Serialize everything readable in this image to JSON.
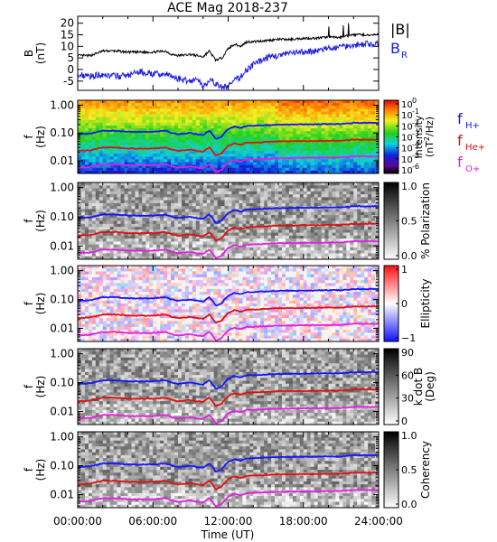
{
  "title": "ACE Mag 2018-237",
  "colors": {
    "H": "#1414ff",
    "He": "#e01010",
    "O": "#e020e0",
    "Btot": "#000000",
    "BR": "#1a1ae6"
  },
  "chart_data": [
    {
      "type": "line",
      "panel": "magnetic-field",
      "ylabel": [
        "B",
        "(nT)"
      ],
      "y_ticks": [
        "20",
        "15",
        "10",
        "5",
        "0",
        "-5"
      ],
      "ylim": [
        -9,
        23
      ],
      "x_hours": [
        0,
        1,
        2,
        3,
        4,
        5,
        6,
        7,
        7.5,
        8,
        9,
        9.5,
        10,
        10.5,
        11,
        11.5,
        12,
        12.5,
        13,
        13.5,
        14,
        15,
        16,
        17,
        18,
        19,
        20,
        21,
        22,
        23,
        24
      ],
      "series": [
        {
          "name": "|B|",
          "values": [
            6,
            6,
            8,
            8,
            7.5,
            7.5,
            7.5,
            8,
            6.5,
            6,
            6.5,
            6,
            5.5,
            8,
            4,
            5,
            9,
            11,
            10,
            12,
            12,
            12.5,
            13,
            13,
            13.5,
            13.5,
            14,
            14,
            15,
            15,
            15
          ]
        },
        {
          "name": "B_R",
          "values": [
            -2,
            -3,
            -2,
            -3,
            -2.5,
            -1,
            -2,
            -2,
            -3,
            -4,
            -5,
            -4,
            -7,
            -5,
            -6,
            -8,
            -7,
            -5,
            -3,
            0,
            2,
            5,
            6,
            7,
            7.5,
            8,
            9,
            10,
            10.5,
            11,
            11
          ]
        }
      ],
      "legend": [
        "|B|",
        "B",
        "R"
      ]
    },
    {
      "type": "heatmap",
      "panel": "intensity",
      "ylabel": [
        "f",
        "(Hz)"
      ],
      "y_ticks": [
        "1.00",
        "0.10",
        "0.01"
      ],
      "colorbar_label": "Intensity (nT²/Hz)",
      "colorbar_label_parts": [
        "Intensity",
        "(nT",
        "2",
        "/Hz)"
      ],
      "colorbar_ticks": [
        "10",
        "10",
        "10",
        "10",
        "10",
        "10",
        "10"
      ],
      "colorbar_exponents": [
        "0",
        "-1",
        "-2",
        "-3",
        "-4",
        "-5",
        "-6"
      ],
      "legend": [
        {
          "label": "f",
          "sub": "H+"
        },
        {
          "label": "f",
          "sub": "He+"
        },
        {
          "label": "f",
          "sub": "O+"
        }
      ]
    },
    {
      "type": "heatmap",
      "panel": "polarization",
      "ylabel": [
        "f",
        "(Hz)"
      ],
      "y_ticks": [
        "1.00",
        "0.10",
        "0.01"
      ],
      "colorbar_label": "% Polarization",
      "colorbar_ticks": [
        "1.0",
        "0.5",
        "0.0"
      ]
    },
    {
      "type": "heatmap",
      "panel": "ellipticity",
      "ylabel": [
        "f",
        "(Hz)"
      ],
      "y_ticks": [
        "1.00",
        "0.10",
        "0.01"
      ],
      "colorbar_label": "Ellipticity",
      "colorbar_ticks": [
        "1",
        "0",
        "−1"
      ]
    },
    {
      "type": "heatmap",
      "panel": "k-dot-b",
      "ylabel": [
        "f",
        "(Hz)"
      ],
      "y_ticks": [
        "1.00",
        "0.10",
        "0.01"
      ],
      "colorbar_label": "k dot B (Deg)",
      "colorbar_label_parts": [
        "k dot B",
        "(Deg)"
      ],
      "colorbar_ticks": [
        "90",
        "60",
        "30",
        "0"
      ]
    },
    {
      "type": "heatmap",
      "panel": "coherency",
      "ylabel": [
        "f",
        "(Hz)"
      ],
      "y_ticks": [
        "1.00",
        "0.10",
        "0.01"
      ],
      "colorbar_label": "Coherency",
      "colorbar_ticks": [
        "1.0",
        "0.5",
        "0.0"
      ]
    }
  ],
  "gyrofrequency_lines": {
    "x_hours": [
      0,
      1,
      2,
      3,
      4,
      5,
      6,
      7,
      7.5,
      8,
      9,
      9.5,
      10,
      10.5,
      11,
      11.5,
      12,
      12.5,
      13,
      13.5,
      14,
      15,
      16,
      17,
      18,
      19,
      20,
      21,
      22,
      23,
      24
    ],
    "fH_hz": [
      0.09,
      0.095,
      0.12,
      0.12,
      0.11,
      0.11,
      0.11,
      0.12,
      0.1,
      0.09,
      0.1,
      0.09,
      0.085,
      0.12,
      0.06,
      0.075,
      0.135,
      0.17,
      0.15,
      0.18,
      0.18,
      0.19,
      0.2,
      0.2,
      0.205,
      0.205,
      0.21,
      0.21,
      0.23,
      0.23,
      0.23
    ]
  },
  "x_axis": {
    "label": "Time (UT)",
    "ticks": [
      "00:00:00",
      "06:00:00",
      "12:00:00",
      "18:00:00",
      "24:00:00"
    ],
    "range_hours": [
      0,
      24
    ]
  }
}
